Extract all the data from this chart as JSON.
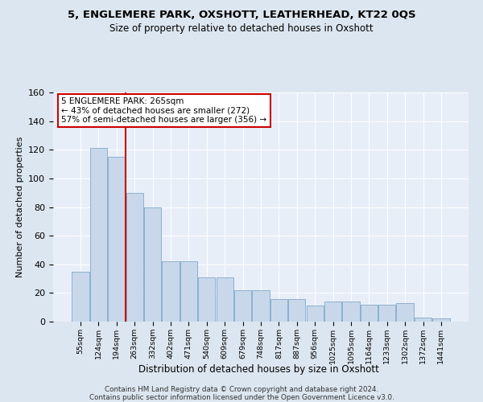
{
  "title": "5, ENGLEMERE PARK, OXSHOTT, LEATHERHEAD, KT22 0QS",
  "subtitle": "Size of property relative to detached houses in Oxshott",
  "xlabel": "Distribution of detached houses by size in Oxshott",
  "ylabel": "Number of detached properties",
  "categories": [
    "55sqm",
    "124sqm",
    "194sqm",
    "263sqm",
    "332sqm",
    "402sqm",
    "471sqm",
    "540sqm",
    "609sqm",
    "679sqm",
    "748sqm",
    "817sqm",
    "887sqm",
    "956sqm",
    "1025sqm",
    "1095sqm",
    "1164sqm",
    "1233sqm",
    "1302sqm",
    "1372sqm",
    "1441sqm"
  ],
  "bar_heights": [
    35,
    121,
    115,
    90,
    80,
    42,
    42,
    31,
    31,
    22,
    22,
    16,
    16,
    11,
    14,
    14,
    12,
    12,
    13,
    3,
    2
  ],
  "bar_color": "#c8d8ea",
  "bar_edge_color": "#7fa8c8",
  "vline_x": 2.5,
  "vline_color": "#cc0000",
  "annotation_line1": "5 ENGLEMERE PARK: 265sqm",
  "annotation_line2": "← 43% of detached houses are smaller (272)",
  "annotation_line3": "57% of semi-detached houses are larger (356) →",
  "annotation_box_color": "#ffffff",
  "annotation_box_edge": "#cc0000",
  "ylim": [
    0,
    160
  ],
  "yticks": [
    0,
    20,
    40,
    60,
    80,
    100,
    120,
    140,
    160
  ],
  "bg_color": "#dce6f0",
  "plot_bg_color": "#e8eef8",
  "footer1": "Contains HM Land Registry data © Crown copyright and database right 2024.",
  "footer2": "Contains public sector information licensed under the Open Government Licence v3.0."
}
